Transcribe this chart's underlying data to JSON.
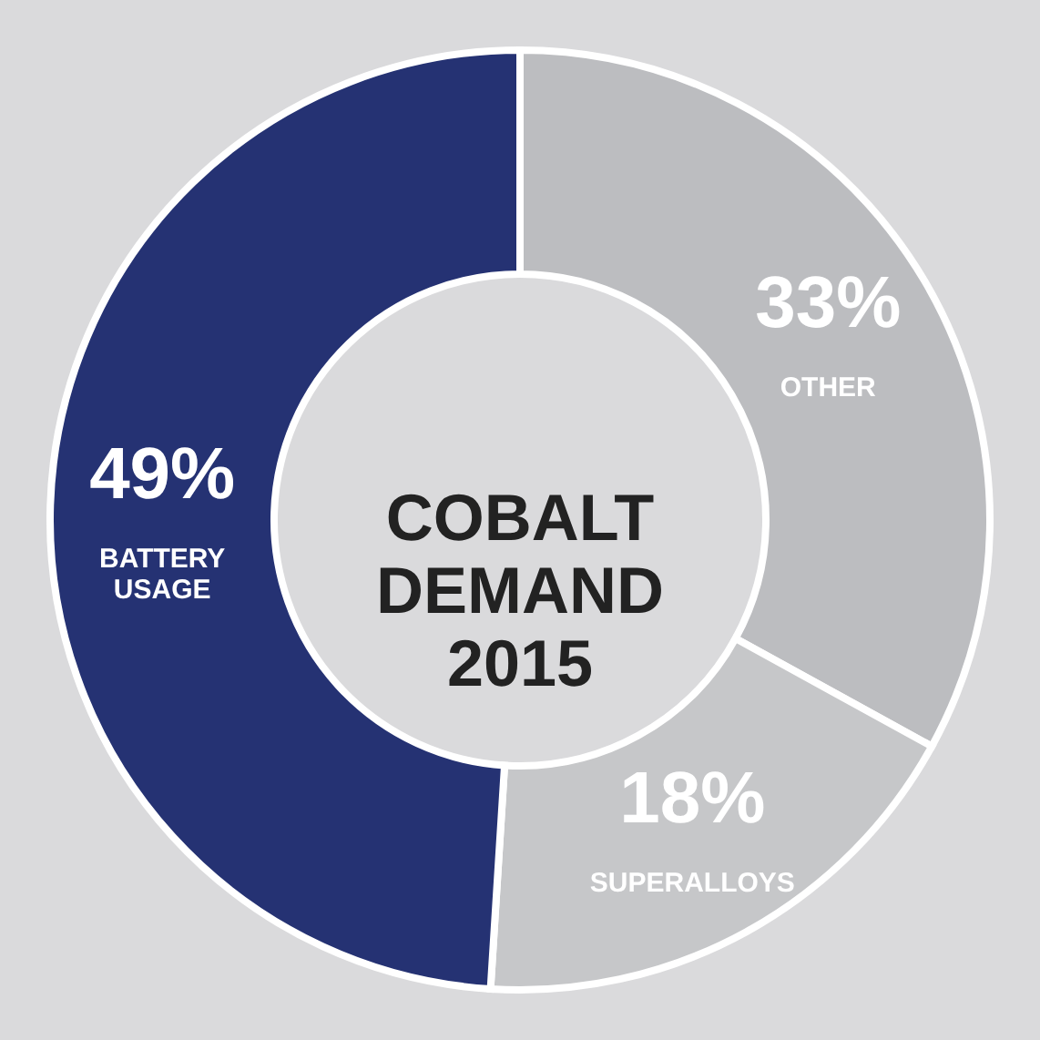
{
  "chart_data": {
    "type": "donut",
    "title": "COBALT DEMAND 2015",
    "categories": [
      "OTHER",
      "SUPERALLOYS",
      "BATTERY USAGE"
    ],
    "values": [
      33,
      18,
      49
    ],
    "value_labels": [
      "33%",
      "18%",
      "49%"
    ],
    "colors": [
      "#bcbdc0",
      "#c6c7c9",
      "#253273"
    ]
  }
}
